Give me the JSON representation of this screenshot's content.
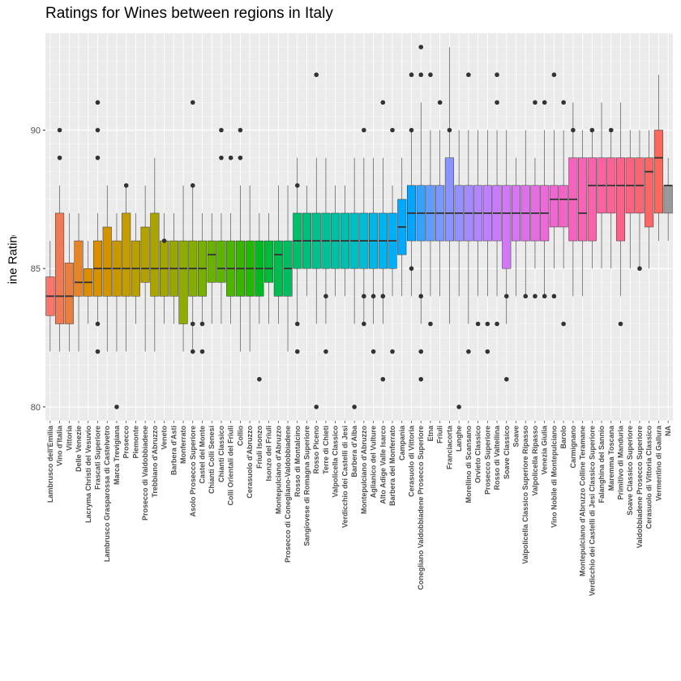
{
  "chart_data": {
    "type": "boxplot",
    "title": "Ratings for Wines between regions in Italy",
    "xlabel": "",
    "ylabel": "Wine Ratings",
    "ylim": [
      79.5,
      93.5
    ],
    "y_ticks": [
      80,
      85,
      90
    ],
    "grid": true,
    "legend": "none",
    "categories": [
      "Lambrusco dell'Emilia",
      "Vino d'Italia",
      "Vittoria",
      "Delle Venezie",
      "Lacryma Christi del Vesuvio",
      "Frascati Superiore",
      "Lambrusco Grasparossa di Castelvetro",
      "Marca Trevigiana",
      "Prosecco",
      "Piemonte",
      "Prosecco di Valdobbiadene",
      "Trebbiano d'Abruzzo",
      "Veneto",
      "Barbera d'Asti",
      "Monferrato",
      "Asolo Prosecco Superiore",
      "Castel del Monte",
      "Chianti Colli Senesi",
      "Chianti Classico",
      "Colli Orientali del Friuli",
      "Collio",
      "Cerasuolo d'Abruzzo",
      "Friuli Isonzo",
      "Isonzo del Friuli",
      "Montepulciano d'Abruzzo",
      "Prosecco di Conegliano-Valdobbiadene",
      "Rosso di Montalcino",
      "Sangiovese di Romagna Superiore",
      "Rosso Piceno",
      "Terre di Chieti",
      "Valpolicella Classico",
      "Verdicchio dei Castelli di Jesi",
      "Barbera d'Alba",
      "Montepulciano d'Abruzzo",
      "Aglianico del Vulture",
      "Alto Adige Valle Isarco",
      "Barbera del Monferrato",
      "Campania",
      "Cerasuolo di Vittoria",
      "Conegliano Valdobbiadene Prosecco Superiore",
      "Etna",
      "Friuli",
      "Franciacorta",
      "Langhe",
      "Morellino di Scansano",
      "Orvieto Classico",
      "Prosecco Superiore",
      "Rosso di Valtellina",
      "Soave Classico",
      "Soave",
      "Valpolicella Classico Superiore Ripasso",
      "Valpolicella Ripasso",
      "Venezia Giulia",
      "Vino Nobile di Montepulciano",
      "Barolo",
      "Carmignano",
      "Montepulciano d'Abruzzo Colline Teramane",
      "Verdicchio dei Castelli di Jesi Classico Superiore",
      "Falanghina del Sannio",
      "Maremma Toscana",
      "Primitivo di Manduria",
      "Soave Classico Superiore",
      "Valdobbiadene Prosecco Superiore",
      "Cerasuolo di Vittoria Classico",
      "Vermentino di Gallura",
      "NA"
    ],
    "boxes": [
      {
        "q1": 83.3,
        "median": 84.0,
        "q3": 84.7,
        "whisker_low": 82,
        "whisker_high": 86,
        "outliers": [],
        "color": "#F8766D"
      },
      {
        "q1": 83.0,
        "median": 84.0,
        "q3": 87.0,
        "whisker_low": 82,
        "whisker_high": 88,
        "outliers": [
          89,
          90
        ],
        "color": "#F07A54"
      },
      {
        "q1": 83.0,
        "median": 84.0,
        "q3": 85.2,
        "whisker_low": 82,
        "whisker_high": 87,
        "outliers": [],
        "color": "#EA7E3F"
      },
      {
        "q1": 84.0,
        "median": 84.5,
        "q3": 86.0,
        "whisker_low": 82,
        "whisker_high": 87,
        "outliers": [],
        "color": "#E58529"
      },
      {
        "q1": 84.0,
        "median": 84.5,
        "q3": 85.0,
        "whisker_low": 83,
        "whisker_high": 86,
        "outliers": [],
        "color": "#DE8C00"
      },
      {
        "q1": 84.0,
        "median": 85.0,
        "q3": 86.0,
        "whisker_low": 83,
        "whisker_high": 87,
        "outliers": [
          82,
          83,
          89,
          90,
          91
        ],
        "color": "#D89000"
      },
      {
        "q1": 84.0,
        "median": 85.0,
        "q3": 86.5,
        "whisker_low": 82,
        "whisker_high": 88,
        "outliers": [],
        "color": "#D19400"
      },
      {
        "q1": 84.0,
        "median": 85.0,
        "q3": 86.0,
        "whisker_low": 82,
        "whisker_high": 87,
        "outliers": [
          80
        ],
        "color": "#C99800"
      },
      {
        "q1": 84.0,
        "median": 85.0,
        "q3": 87.0,
        "whisker_low": 82,
        "whisker_high": 88,
        "outliers": [
          88
        ],
        "color": "#C29C00"
      },
      {
        "q1": 84.0,
        "median": 85.0,
        "q3": 86.0,
        "whisker_low": 83,
        "whisker_high": 87,
        "outliers": [],
        "color": "#BA9F00"
      },
      {
        "q1": 84.5,
        "median": 85.0,
        "q3": 86.5,
        "whisker_low": 82,
        "whisker_high": 88,
        "outliers": [],
        "color": "#B2A100"
      },
      {
        "q1": 84.0,
        "median": 85.0,
        "q3": 87.0,
        "whisker_low": 82,
        "whisker_high": 89,
        "outliers": [],
        "color": "#A9A400"
      },
      {
        "q1": 84.0,
        "median": 85.0,
        "q3": 86.0,
        "whisker_low": 83,
        "whisker_high": 87,
        "outliers": [
          86
        ],
        "color": "#A3A500"
      },
      {
        "q1": 84.0,
        "median": 85.0,
        "q3": 86.0,
        "whisker_low": 83,
        "whisker_high": 87,
        "outliers": [],
        "color": "#99A800"
      },
      {
        "q1": 83.0,
        "median": 85.0,
        "q3": 86.0,
        "whisker_low": 82,
        "whisker_high": 88,
        "outliers": [],
        "color": "#8EAB00"
      },
      {
        "q1": 84.0,
        "median": 85.0,
        "q3": 86.0,
        "whisker_low": 82,
        "whisker_high": 88,
        "outliers": [
          82,
          83,
          88,
          91
        ],
        "color": "#84AD00"
      },
      {
        "q1": 84.0,
        "median": 85.0,
        "q3": 86.0,
        "whisker_low": 83,
        "whisker_high": 87,
        "outliers": [
          82,
          83
        ],
        "color": "#77B000"
      },
      {
        "q1": 84.5,
        "median": 85.5,
        "q3": 86.0,
        "whisker_low": 83,
        "whisker_high": 87,
        "outliers": [],
        "color": "#6BB100"
      },
      {
        "q1": 84.5,
        "median": 85.0,
        "q3": 86.0,
        "whisker_low": 83,
        "whisker_high": 87,
        "outliers": [
          89,
          90
        ],
        "color": "#5CB400"
      },
      {
        "q1": 84.0,
        "median": 85.0,
        "q3": 86.0,
        "whisker_low": 83,
        "whisker_high": 87,
        "outliers": [
          89
        ],
        "color": "#4BB500"
      },
      {
        "q1": 84.0,
        "median": 85.0,
        "q3": 86.0,
        "whisker_low": 82,
        "whisker_high": 88,
        "outliers": [
          89,
          90
        ],
        "color": "#37B600"
      },
      {
        "q1": 84.0,
        "median": 85.0,
        "q3": 86.0,
        "whisker_low": 82,
        "whisker_high": 88,
        "outliers": [],
        "color": "#23B700"
      },
      {
        "q1": 84.0,
        "median": 85.0,
        "q3": 86.0,
        "whisker_low": 83,
        "whisker_high": 87,
        "outliers": [
          81
        ],
        "color": "#00B81F"
      },
      {
        "q1": 84.5,
        "median": 85.0,
        "q3": 86.0,
        "whisker_low": 83,
        "whisker_high": 87,
        "outliers": [],
        "color": "#00BA38"
      },
      {
        "q1": 84.0,
        "median": 85.5,
        "q3": 86.0,
        "whisker_low": 83,
        "whisker_high": 88,
        "outliers": [],
        "color": "#00BB4E"
      },
      {
        "q1": 84.0,
        "median": 85.0,
        "q3": 86.0,
        "whisker_low": 82,
        "whisker_high": 88,
        "outliers": [],
        "color": "#00BC5F"
      },
      {
        "q1": 85.0,
        "median": 86.0,
        "q3": 87.0,
        "whisker_low": 83,
        "whisker_high": 89,
        "outliers": [
          82,
          83,
          88
        ],
        "color": "#00BE6C"
      },
      {
        "q1": 85.0,
        "median": 86.0,
        "q3": 87.0,
        "whisker_low": 84,
        "whisker_high": 88,
        "outliers": [],
        "color": "#00BF7D"
      },
      {
        "q1": 85.0,
        "median": 86.0,
        "q3": 87.0,
        "whisker_low": 83,
        "whisker_high": 89,
        "outliers": [
          80,
          92
        ],
        "color": "#00C08B"
      },
      {
        "q1": 85.0,
        "median": 86.0,
        "q3": 87.0,
        "whisker_low": 83,
        "whisker_high": 89,
        "outliers": [
          82,
          84
        ],
        "color": "#00C094"
      },
      {
        "q1": 85.0,
        "median": 86.0,
        "q3": 87.0,
        "whisker_low": 84,
        "whisker_high": 88,
        "outliers": [],
        "color": "#00C0A3"
      },
      {
        "q1": 85.0,
        "median": 86.0,
        "q3": 87.0,
        "whisker_low": 84,
        "whisker_high": 88,
        "outliers": [],
        "color": "#00BFAF"
      },
      {
        "q1": 85.0,
        "median": 86.0,
        "q3": 87.0,
        "whisker_low": 83,
        "whisker_high": 89,
        "outliers": [
          80
        ],
        "color": "#00BFC4"
      },
      {
        "q1": 85.0,
        "median": 86.0,
        "q3": 87.0,
        "whisker_low": 83,
        "whisker_high": 89,
        "outliers": [
          83,
          84,
          90
        ],
        "color": "#00BCD4"
      },
      {
        "q1": 85.0,
        "median": 86.0,
        "q3": 87.0,
        "whisker_low": 83,
        "whisker_high": 89,
        "outliers": [
          82,
          84
        ],
        "color": "#00B8E7"
      },
      {
        "q1": 85.0,
        "median": 86.0,
        "q3": 87.0,
        "whisker_low": 83,
        "whisker_high": 89,
        "outliers": [
          81,
          84,
          91
        ],
        "color": "#00B4EF"
      },
      {
        "q1": 85.0,
        "median": 86.0,
        "q3": 87.0,
        "whisker_low": 84,
        "whisker_high": 88,
        "outliers": [
          82,
          90
        ],
        "color": "#00B0F6"
      },
      {
        "q1": 85.5,
        "median": 86.5,
        "q3": 87.5,
        "whisker_low": 84,
        "whisker_high": 89,
        "outliers": [],
        "color": "#00A9FF"
      },
      {
        "q1": 86.0,
        "median": 87.0,
        "q3": 88.0,
        "whisker_low": 84,
        "whisker_high": 90,
        "outliers": [
          85,
          90,
          92
        ],
        "color": "#00A5FF"
      },
      {
        "q1": 86.0,
        "median": 87.0,
        "q3": 88.0,
        "whisker_low": 83,
        "whisker_high": 91,
        "outliers": [
          81,
          82,
          84,
          92,
          93
        ],
        "color": "#35A2FF"
      },
      {
        "q1": 86.0,
        "median": 87.0,
        "q3": 88.0,
        "whisker_low": 84,
        "whisker_high": 90,
        "outliers": [
          83,
          92
        ],
        "color": "#619CFF"
      },
      {
        "q1": 86.0,
        "median": 87.0,
        "q3": 88.0,
        "whisker_low": 84,
        "whisker_high": 90,
        "outliers": [
          91
        ],
        "color": "#7997FF"
      },
      {
        "q1": 86.0,
        "median": 87.0,
        "q3": 89.0,
        "whisker_low": 83,
        "whisker_high": 93,
        "outliers": [
          90
        ],
        "color": "#8B93FF"
      },
      {
        "q1": 86.0,
        "median": 87.0,
        "q3": 88.0,
        "whisker_low": 84,
        "whisker_high": 90,
        "outliers": [
          80
        ],
        "color": "#9590FF"
      },
      {
        "q1": 86.0,
        "median": 87.0,
        "q3": 88.0,
        "whisker_low": 83,
        "whisker_high": 90,
        "outliers": [
          82,
          92
        ],
        "color": "#A58AFF"
      },
      {
        "q1": 86.0,
        "median": 87.0,
        "q3": 88.0,
        "whisker_low": 84,
        "whisker_high": 90,
        "outliers": [
          83
        ],
        "color": "#B385FF"
      },
      {
        "q1": 86.0,
        "median": 87.0,
        "q3": 88.0,
        "whisker_low": 84,
        "whisker_high": 90,
        "outliers": [
          82,
          83
        ],
        "color": "#BE80FF"
      },
      {
        "q1": 86.0,
        "median": 87.0,
        "q3": 88.0,
        "whisker_low": 84,
        "whisker_high": 90,
        "outliers": [
          83,
          91,
          92
        ],
        "color": "#C77CFF"
      },
      {
        "q1": 85.0,
        "median": 87.0,
        "q3": 88.0,
        "whisker_low": 83,
        "whisker_high": 90,
        "outliers": [
          81,
          84
        ],
        "color": "#D078F8"
      },
      {
        "q1": 86.0,
        "median": 87.0,
        "q3": 88.0,
        "whisker_low": 84,
        "whisker_high": 89,
        "outliers": [],
        "color": "#D774F1"
      },
      {
        "q1": 86.0,
        "median": 87.0,
        "q3": 88.0,
        "whisker_low": 84,
        "whisker_high": 90,
        "outliers": [
          84
        ],
        "color": "#DE71E9"
      },
      {
        "q1": 86.0,
        "median": 87.0,
        "q3": 88.0,
        "whisker_low": 85,
        "whisker_high": 89,
        "outliers": [
          84,
          91
        ],
        "color": "#E46DE1"
      },
      {
        "q1": 86.0,
        "median": 87.0,
        "q3": 88.0,
        "whisker_low": 84,
        "whisker_high": 90,
        "outliers": [
          84,
          91
        ],
        "color": "#EB6AD9"
      },
      {
        "q1": 86.5,
        "median": 87.5,
        "q3": 88.0,
        "whisker_low": 85,
        "whisker_high": 90,
        "outliers": [
          84,
          92
        ],
        "color": "#F066D0"
      },
      {
        "q1": 86.5,
        "median": 87.5,
        "q3": 88.0,
        "whisker_low": 85,
        "whisker_high": 90,
        "outliers": [
          83,
          91
        ],
        "color": "#F364C6"
      },
      {
        "q1": 86.0,
        "median": 87.5,
        "q3": 89.0,
        "whisker_low": 84,
        "whisker_high": 91,
        "outliers": [
          90
        ],
        "color": "#F663BD"
      },
      {
        "q1": 86.0,
        "median": 87.0,
        "q3": 89.0,
        "whisker_low": 84,
        "whisker_high": 90,
        "outliers": [],
        "color": "#F863B3"
      },
      {
        "q1": 86.0,
        "median": 88.0,
        "q3": 89.0,
        "whisker_low": 85,
        "whisker_high": 90,
        "outliers": [
          90
        ],
        "color": "#FA62A9"
      },
      {
        "q1": 87.0,
        "median": 88.0,
        "q3": 89.0,
        "whisker_low": 85,
        "whisker_high": 91,
        "outliers": [],
        "color": "#FB629F"
      },
      {
        "q1": 87.0,
        "median": 88.0,
        "q3": 89.0,
        "whisker_low": 85,
        "whisker_high": 90,
        "outliers": [
          90
        ],
        "color": "#FC6295"
      },
      {
        "q1": 86.0,
        "median": 88.0,
        "q3": 89.0,
        "whisker_low": 84,
        "whisker_high": 91,
        "outliers": [
          83
        ],
        "color": "#FD628A"
      },
      {
        "q1": 87.0,
        "median": 88.0,
        "q3": 89.0,
        "whisker_low": 85,
        "whisker_high": 90,
        "outliers": [],
        "color": "#FC637F"
      },
      {
        "q1": 87.0,
        "median": 88.0,
        "q3": 89.0,
        "whisker_low": 85,
        "whisker_high": 90,
        "outliers": [
          85
        ],
        "color": "#FB6474"
      },
      {
        "q1": 86.5,
        "median": 88.5,
        "q3": 89.0,
        "whisker_low": 85,
        "whisker_high": 90,
        "outliers": [],
        "color": "#FA6768"
      },
      {
        "q1": 87.0,
        "median": 89.0,
        "q3": 90.0,
        "whisker_low": 86,
        "whisker_high": 92,
        "outliers": [],
        "color": "#F96A5C"
      },
      {
        "q1": 87.0,
        "median": 88.0,
        "q3": 88.0,
        "whisker_low": 86,
        "whisker_high": 89,
        "outliers": [],
        "color": "#999999"
      }
    ]
  }
}
